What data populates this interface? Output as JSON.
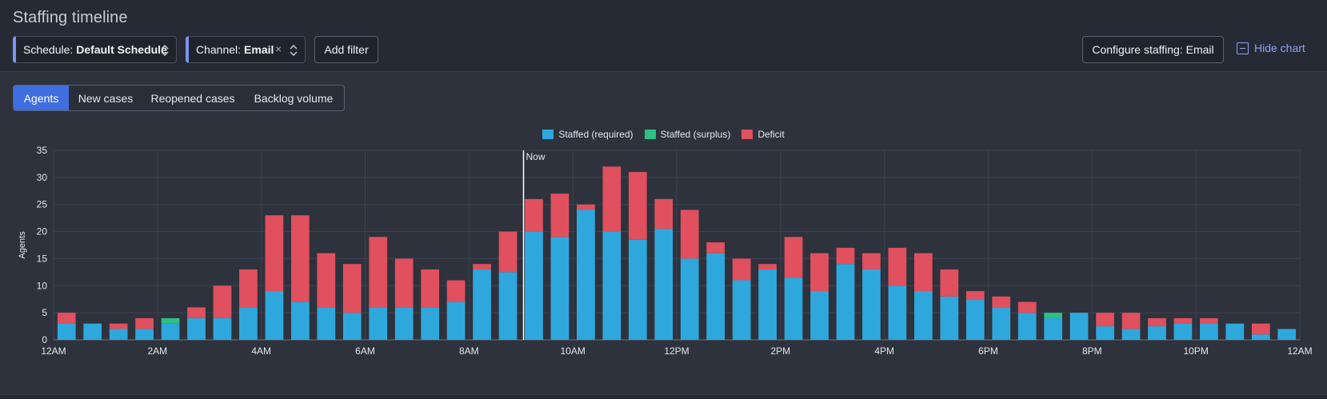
{
  "header": {
    "title": "Staffing timeline",
    "schedule_filter": {
      "label": "Schedule:",
      "value": "Default Schedule"
    },
    "channel_filter": {
      "label": "Channel:",
      "value": "Email",
      "clear": "×"
    },
    "add_filter": "Add filter",
    "configure": "Configure staffing: Email",
    "hide_chart": "Hide chart"
  },
  "tabs": [
    {
      "label": "Agents",
      "active": true
    },
    {
      "label": "New cases",
      "active": false
    },
    {
      "label": "Reopened cases",
      "active": false
    },
    {
      "label": "Backlog volume",
      "active": false
    }
  ],
  "colors": {
    "required": "#2ea8dc",
    "surplus": "#2fbf84",
    "deficit": "#e0505e",
    "accent": "#3f6ee0"
  },
  "chart_data": {
    "type": "bar",
    "stacked": true,
    "ylabel": "Agents",
    "ylim": [
      0,
      35
    ],
    "yticks": [
      0,
      5,
      10,
      15,
      20,
      25,
      30,
      35
    ],
    "xtick_labels": [
      "12AM",
      "2AM",
      "4AM",
      "6AM",
      "8AM",
      "10AM",
      "12PM",
      "2PM",
      "4PM",
      "6PM",
      "8PM",
      "10PM",
      "12AM"
    ],
    "now_marker": {
      "label": "Now",
      "position_hours": 9.05
    },
    "legend": [
      "Staffed (required)",
      "Staffed (surplus)",
      "Deficit"
    ],
    "bucket_minutes": 30,
    "series": [
      {
        "name": "Staffed (required)",
        "values": [
          3,
          3,
          2,
          2,
          3,
          4,
          4,
          6,
          9,
          7,
          6,
          5,
          6,
          6,
          6,
          7,
          13,
          12.5,
          20,
          19,
          24,
          20,
          18.5,
          20.5,
          15,
          16,
          11,
          13,
          11.5,
          9,
          14,
          13,
          10,
          9,
          8,
          7.5,
          6,
          5,
          4,
          5,
          2.5,
          2,
          2.5,
          3,
          3,
          3,
          1,
          2
        ]
      },
      {
        "name": "Staffed (surplus)",
        "values": [
          0,
          0,
          0,
          0,
          1,
          0,
          0,
          0,
          0,
          0,
          0,
          0,
          0,
          0,
          0,
          0,
          0,
          0,
          0,
          0,
          0,
          0,
          0,
          0,
          0,
          0,
          0,
          0,
          0,
          0,
          0,
          0,
          0,
          0,
          0,
          0,
          0,
          0,
          1,
          0,
          0,
          0,
          0,
          0,
          0,
          0,
          0,
          0
        ]
      },
      {
        "name": "Deficit",
        "values": [
          2,
          0,
          1,
          2,
          0,
          2,
          6,
          7,
          14,
          16,
          10,
          9,
          13,
          9,
          7,
          4,
          1,
          7.5,
          6,
          8,
          1,
          12,
          12.5,
          5.5,
          9,
          2,
          4,
          1,
          7.5,
          7,
          3,
          3,
          7,
          7,
          5,
          1.5,
          2,
          2,
          0,
          0,
          2.5,
          3,
          1.5,
          1,
          1,
          0,
          2,
          0
        ]
      }
    ]
  }
}
